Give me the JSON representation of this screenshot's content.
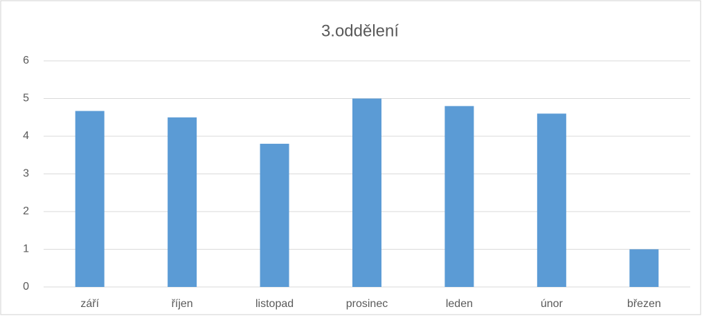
{
  "chart_data": {
    "type": "bar",
    "title": "3.oddělení",
    "categories": [
      "září",
      "říjen",
      "listopad",
      "prosinec",
      "leden",
      "únor",
      "březen"
    ],
    "values": [
      4.67,
      4.5,
      3.8,
      5,
      4.8,
      4.6,
      1
    ],
    "color": "#5b9bd5",
    "ylim": [
      0,
      6
    ],
    "yticks": [
      0,
      1,
      2,
      3,
      4,
      5,
      6
    ],
    "grid": true
  }
}
